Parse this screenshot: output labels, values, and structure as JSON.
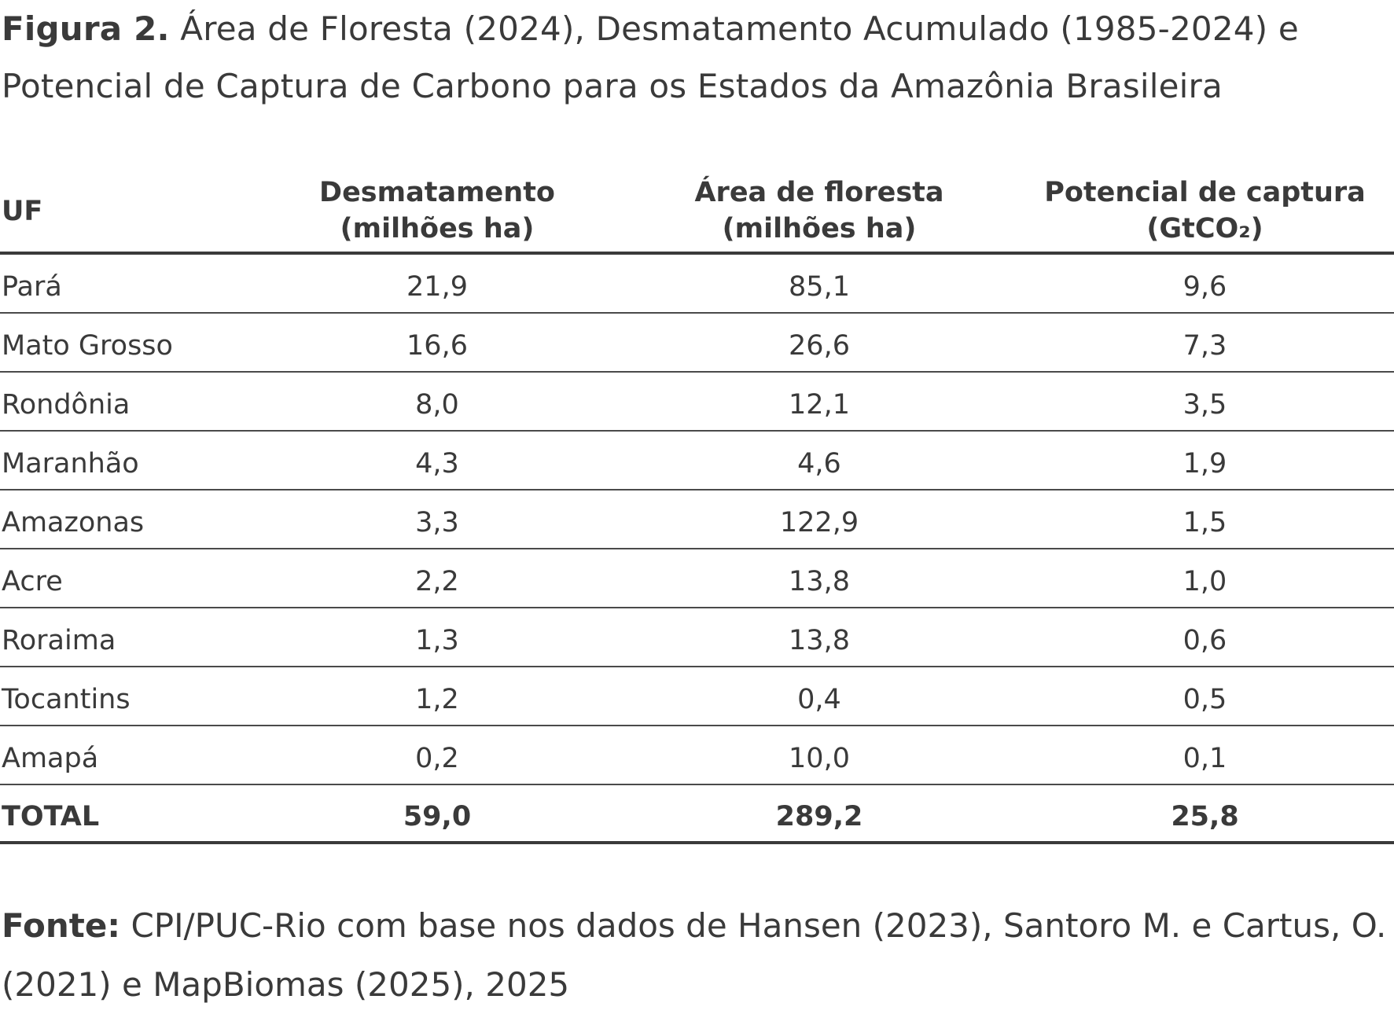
{
  "caption": {
    "lead": "Figura 2.",
    "text": " Área de Floresta (2024), Desmatamento Acumulado (1985-2024) e Potencial de Captura de Carbono para os Estados da Amazônia Brasileira"
  },
  "table": {
    "headers": [
      {
        "line1": "UF",
        "line2": ""
      },
      {
        "line1": "Desmatamento",
        "line2": "(milhões ha)"
      },
      {
        "line1": "Área de floresta",
        "line2": "(milhões ha)"
      },
      {
        "line1": "Potencial de captura",
        "line2": "(GtCO₂)"
      }
    ],
    "rows": [
      [
        "Pará",
        "21,9",
        "85,1",
        "9,6"
      ],
      [
        "Mato Grosso",
        "16,6",
        "26,6",
        "7,3"
      ],
      [
        "Rondônia",
        "8,0",
        "12,1",
        "3,5"
      ],
      [
        "Maranhão",
        "4,3",
        "4,6",
        "1,9"
      ],
      [
        "Amazonas",
        "3,3",
        "122,9",
        "1,5"
      ],
      [
        "Acre",
        "2,2",
        "13,8",
        "1,0"
      ],
      [
        "Roraima",
        "1,3",
        "13,8",
        "0,6"
      ],
      [
        "Tocantins",
        "1,2",
        "0,4",
        "0,5"
      ],
      [
        "Amapá",
        "0,2",
        "10,0",
        "0,1"
      ]
    ],
    "total": [
      "TOTAL",
      "59,0",
      "289,2",
      "25,8"
    ]
  },
  "footer": {
    "lead": "Fonte:",
    "text": " CPI/PUC-Rio com base nos dados de Hansen (2023), Santoro M. e Cartus, O. (2021) e MapBiomas (2025), 2025"
  }
}
